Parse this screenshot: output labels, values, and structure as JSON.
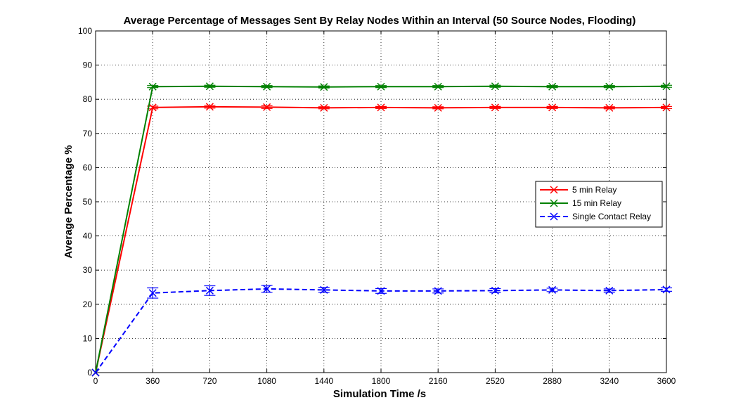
{
  "chart_data": {
    "type": "line",
    "title": "Average Percentage of Messages Sent By Relay Nodes Within an Interval (50 Source Nodes, Flooding)",
    "xlabel": "Simulation Time /s",
    "ylabel": "Average Percentage %",
    "xlim": [
      0,
      3600
    ],
    "ylim": [
      0,
      100
    ],
    "xticks": [
      0,
      360,
      720,
      1080,
      1440,
      1800,
      2160,
      2520,
      2880,
      3240,
      3600
    ],
    "yticks": [
      0,
      10,
      20,
      30,
      40,
      50,
      60,
      70,
      80,
      90,
      100
    ],
    "grid": true,
    "legend_position": "right",
    "x": [
      0,
      360,
      720,
      1080,
      1440,
      1800,
      2160,
      2520,
      2880,
      3240,
      3600
    ],
    "series": [
      {
        "name": "5 min Relay",
        "color": "#ff0000",
        "style": "solid",
        "marker": "x",
        "values": [
          0,
          77.6,
          77.8,
          77.7,
          77.5,
          77.6,
          77.5,
          77.6,
          77.6,
          77.5,
          77.6
        ],
        "error": [
          0,
          0.4,
          0.4,
          0.4,
          0.3,
          0.3,
          0.3,
          0.3,
          0.3,
          0.3,
          0.3
        ]
      },
      {
        "name": "15 min Relay",
        "color": "#008000",
        "style": "solid",
        "marker": "x",
        "values": [
          0,
          83.7,
          83.8,
          83.7,
          83.6,
          83.7,
          83.7,
          83.8,
          83.7,
          83.7,
          83.8
        ],
        "error": [
          0,
          0.3,
          0.3,
          0.3,
          0.3,
          0.3,
          0.3,
          0.3,
          0.3,
          0.3,
          0.3
        ]
      },
      {
        "name": "Single Contact Relay",
        "color": "#0000ff",
        "style": "dashed",
        "marker": "x",
        "values": [
          0,
          23.3,
          24.0,
          24.5,
          24.2,
          23.9,
          23.9,
          24.0,
          24.2,
          24.0,
          24.3
        ],
        "error": [
          0,
          1.5,
          1.4,
          1.0,
          0.7,
          0.7,
          0.6,
          0.6,
          0.5,
          0.5,
          0.5
        ]
      }
    ]
  }
}
